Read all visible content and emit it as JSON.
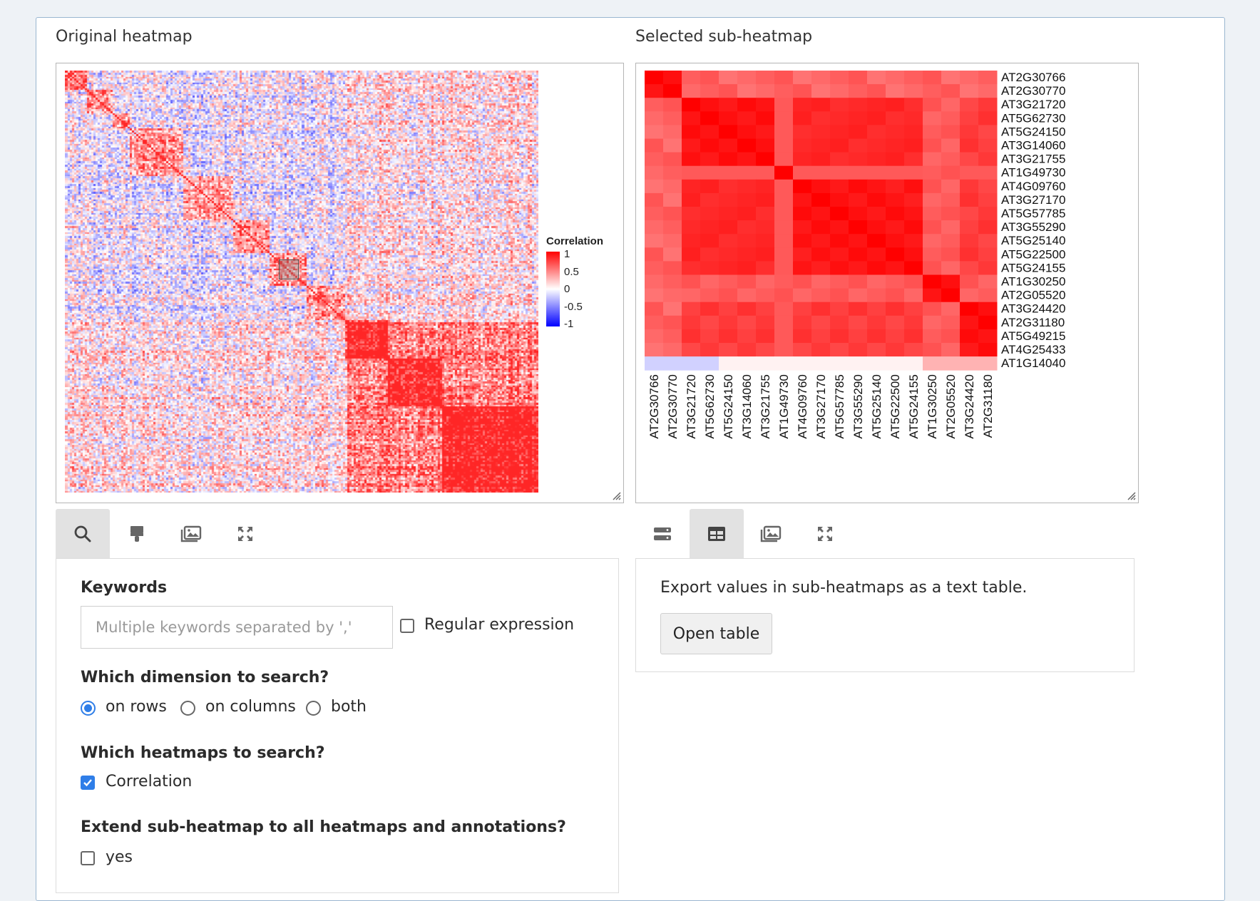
{
  "left_panel": {
    "title": "Original heatmap",
    "legend": {
      "title": "Correlation",
      "ticks": [
        "1",
        "0.5",
        "0",
        "-0.5",
        "-1"
      ]
    }
  },
  "right_panel": {
    "title": "Selected sub-heatmap",
    "genes": [
      "AT2G30766",
      "AT2G30770",
      "AT3G21720",
      "AT5G62730",
      "AT5G24150",
      "AT3G14060",
      "AT3G21755",
      "AT1G49730",
      "AT4G09760",
      "AT3G27170",
      "AT5G57785",
      "AT3G55290",
      "AT5G25140",
      "AT5G22500",
      "AT5G24155",
      "AT1G30250",
      "AT2G05520",
      "AT3G24420",
      "AT2G31180",
      "AT5G49215",
      "AT4G25433",
      "AT1G14040"
    ],
    "col_genes": [
      "AT2G30766",
      "AT2G30770",
      "AT3G21720",
      "AT5G62730",
      "AT5G24150",
      "AT3G14060",
      "AT3G21755",
      "AT1G49730",
      "AT4G09760",
      "AT3G27170",
      "AT5G57785",
      "AT3G55290",
      "AT5G25140",
      "AT5G22500",
      "AT5G24155",
      "AT1G30250",
      "AT2G05520",
      "AT3G24420",
      "AT2G31180"
    ]
  },
  "left_tabs": [
    {
      "icon": "search-icon",
      "active": true
    },
    {
      "icon": "brush-icon",
      "active": false
    },
    {
      "icon": "image-icon",
      "active": false
    },
    {
      "icon": "expand-icon",
      "active": false
    }
  ],
  "right_tabs": [
    {
      "icon": "list-icon",
      "active": false
    },
    {
      "icon": "table-icon",
      "active": true
    },
    {
      "icon": "image-icon",
      "active": false
    },
    {
      "icon": "expand-icon",
      "active": false
    }
  ],
  "search_form": {
    "keywords_label": "Keywords",
    "keywords_placeholder": "Multiple keywords separated by ','",
    "keywords_value": "",
    "regex_label": "Regular expression",
    "regex_checked": false,
    "dimension_label": "Which dimension to search?",
    "dimension_options": [
      "on rows",
      "on columns",
      "both"
    ],
    "dimension_selected": "on rows",
    "heatmaps_label": "Which heatmaps to search?",
    "heatmap_option": "Correlation",
    "heatmap_checked": true,
    "extend_label": "Extend sub-heatmap to all heatmaps and annotations?",
    "extend_option": "yes",
    "extend_checked": false
  },
  "export_pane": {
    "description": "Export values in sub-heatmaps as a text table.",
    "button_label": "Open table"
  },
  "colors": {
    "high": "#ff0000",
    "mid": "#ffffff",
    "low": "#0000ff",
    "accent": "#2f7ee8"
  }
}
